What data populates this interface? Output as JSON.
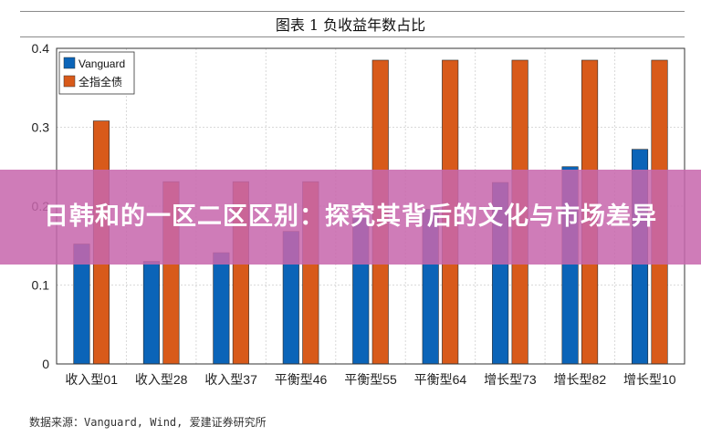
{
  "chart_data": {
    "type": "bar",
    "title": "图表 1 负收益年数占比",
    "categories": [
      "收入型01",
      "收入型28",
      "收入型37",
      "平衡型46",
      "平衡型55",
      "平衡型64",
      "增长型73",
      "增长型82",
      "增长型10"
    ],
    "yticks": [
      "0",
      "0.1",
      "0.2",
      "0.3",
      "0.4"
    ],
    "ylim": [
      0,
      0.4
    ],
    "legend_position": "top-left",
    "grid": true,
    "series": [
      {
        "name": "Vanguard",
        "color": "#0b64b8",
        "values": [
          0.152,
          0.13,
          0.141,
          0.168,
          0.186,
          0.196,
          0.23,
          0.25,
          0.272
        ]
      },
      {
        "name": "全指全债",
        "color": "#d85a1a",
        "values": [
          0.308,
          0.231,
          0.231,
          0.231,
          0.385,
          0.385,
          0.385,
          0.385,
          0.385
        ]
      }
    ]
  },
  "banner": {
    "text": "日韩和的一区二区区别：探究其背后的文化与市场差异"
  },
  "source": "数据来源：Vanguard, Wind, 爱建证券研究所"
}
